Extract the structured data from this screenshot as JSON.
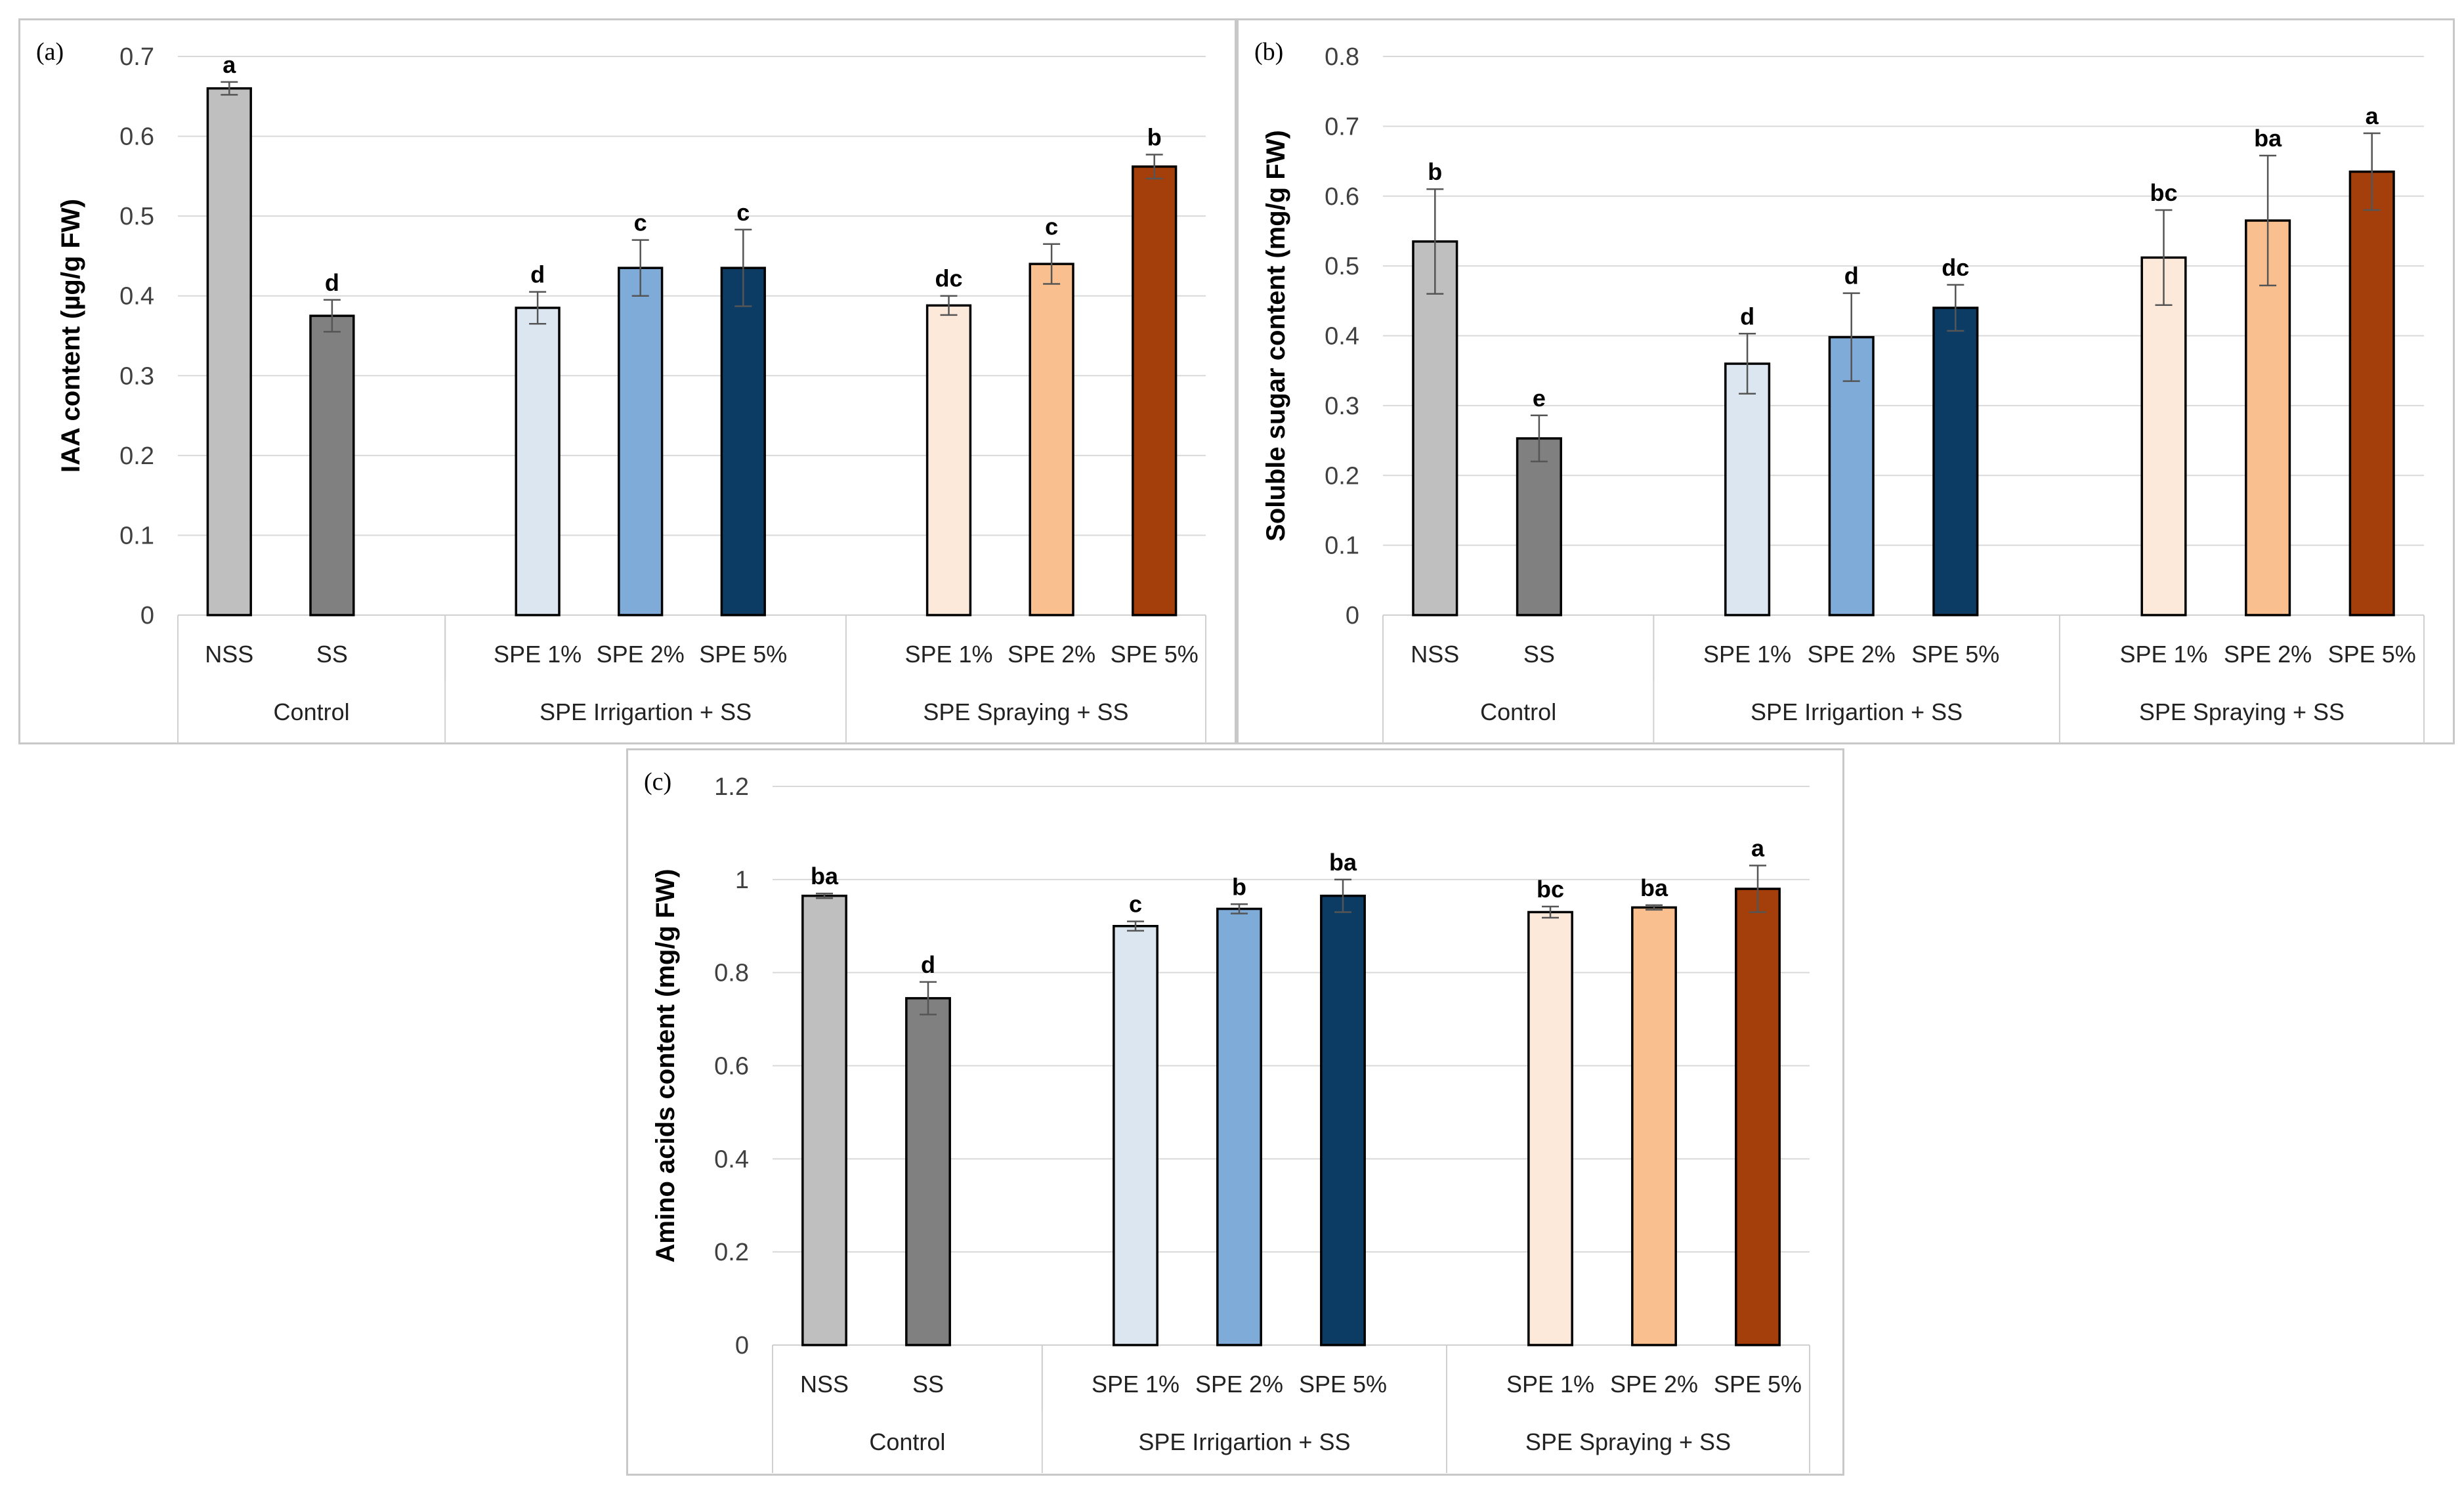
{
  "bar_colors": [
    "#bfbfbf",
    "#808080",
    "#dce6f1",
    "#7eabd8",
    "#0c3c64",
    "#fde9d9",
    "#f9bf8f",
    "#a43e0a"
  ],
  "chart_data": [
    {
      "type": "bar",
      "panel_label": "(a)",
      "ylabel": "IAA content (µg/g FW)",
      "ylim": [
        0,
        0.7
      ],
      "yticks": [
        0,
        0.1,
        0.2,
        0.3,
        0.4,
        0.5,
        0.6,
        0.7
      ],
      "ytick_labels": [
        "0",
        "0.1",
        "0.2",
        "0.3",
        "0.4",
        "0.5",
        "0.6",
        "0.7"
      ],
      "grid": true,
      "categories": [
        "NSS",
        "SS",
        "SPE 1%",
        "SPE 2%",
        "SPE 5%",
        "SPE 1%",
        "SPE 2%",
        "SPE 5%"
      ],
      "groups": [
        {
          "label": "Control",
          "size": 2
        },
        {
          "label": "SPE Irrigartion + SS",
          "size": 3
        },
        {
          "label": "SPE Spraying + SS",
          "size": 3
        }
      ],
      "values": [
        0.66,
        0.375,
        0.385,
        0.435,
        0.435,
        0.388,
        0.44,
        0.562
      ],
      "errors": [
        0.008,
        0.02,
        0.02,
        0.035,
        0.048,
        0.012,
        0.025,
        0.015
      ],
      "letters": [
        "a",
        "d",
        "d",
        "c",
        "c",
        "dc",
        "c",
        "b"
      ]
    },
    {
      "type": "bar",
      "panel_label": "(b)",
      "ylabel": "Soluble sugar content (mg/g FW)",
      "ylim": [
        0,
        0.8
      ],
      "yticks": [
        0,
        0.1,
        0.2,
        0.3,
        0.4,
        0.5,
        0.6,
        0.7,
        0.8
      ],
      "ytick_labels": [
        "0",
        "0.1",
        "0.2",
        "0.3",
        "0.4",
        "0.5",
        "0.6",
        "0.7",
        "0.8"
      ],
      "grid": true,
      "categories": [
        "NSS",
        "SS",
        "SPE 1%",
        "SPE 2%",
        "SPE 5%",
        "SPE 1%",
        "SPE 2%",
        "SPE 5%"
      ],
      "groups": [
        {
          "label": "Control",
          "size": 2
        },
        {
          "label": "SPE Irrigartion + SS",
          "size": 3
        },
        {
          "label": "SPE Spraying + SS",
          "size": 3
        }
      ],
      "values": [
        0.535,
        0.253,
        0.36,
        0.398,
        0.44,
        0.512,
        0.565,
        0.635
      ],
      "errors": [
        0.075,
        0.033,
        0.043,
        0.063,
        0.033,
        0.068,
        0.093,
        0.055
      ],
      "letters": [
        "b",
        "e",
        "d",
        "d",
        "dc",
        "bc",
        "ba",
        "a"
      ]
    },
    {
      "type": "bar",
      "panel_label": "(c)",
      "ylabel": "Amino acids content (mg/g FW)",
      "ylim": [
        0,
        1.2
      ],
      "yticks": [
        0,
        0.2,
        0.4,
        0.6,
        0.8,
        1.0,
        1.2
      ],
      "ytick_labels": [
        "0",
        "0.2",
        "0.4",
        "0.6",
        "0.8",
        "1",
        "1.2"
      ],
      "grid": true,
      "categories": [
        "NSS",
        "SS",
        "SPE 1%",
        "SPE 2%",
        "SPE 5%",
        "SPE 1%",
        "SPE 2%",
        "SPE 5%"
      ],
      "groups": [
        {
          "label": "Control",
          "size": 2
        },
        {
          "label": "SPE Irrigartion + SS",
          "size": 3
        },
        {
          "label": "SPE Spraying + SS",
          "size": 3
        }
      ],
      "values": [
        0.965,
        0.745,
        0.9,
        0.937,
        0.965,
        0.93,
        0.94,
        0.98
      ],
      "errors": [
        0.005,
        0.035,
        0.01,
        0.01,
        0.035,
        0.012,
        0.005,
        0.05
      ],
      "letters": [
        "ba",
        "d",
        "c",
        "b",
        "ba",
        "bc",
        "ba",
        "a"
      ]
    }
  ]
}
